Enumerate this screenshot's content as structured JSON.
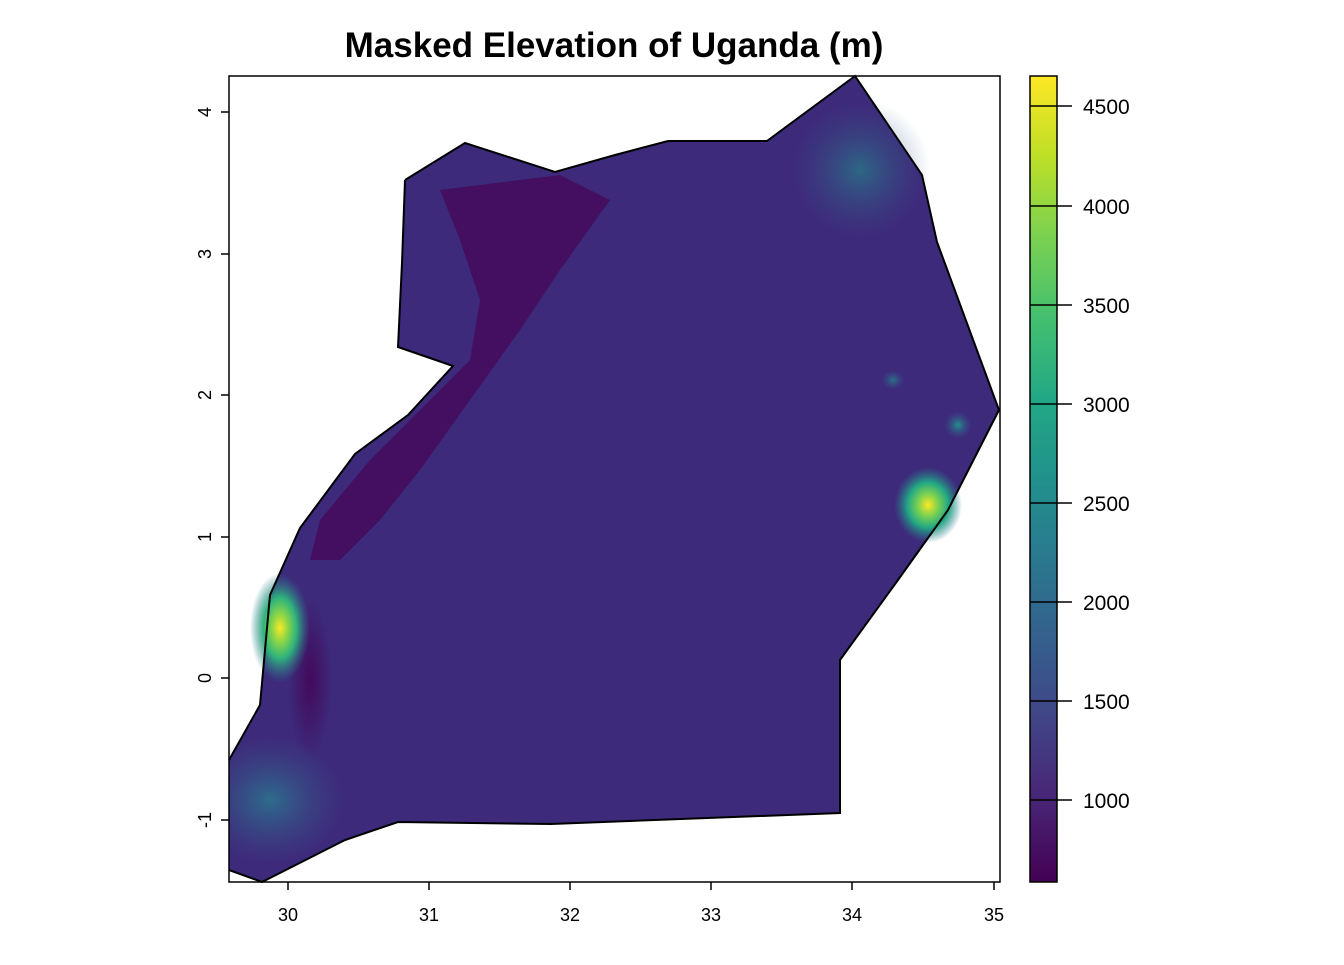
{
  "map": {
    "title": "Masked Elevation of Uganda (m)",
    "x_ticks": [
      "30",
      "31",
      "32",
      "33",
      "34",
      "35"
    ],
    "y_ticks": [
      "4",
      "3",
      "2",
      "1",
      "0",
      "-1"
    ],
    "xlim": [
      29.57,
      35.03
    ],
    "ylim": [
      -1.48,
      4.23
    ],
    "colormap": "viridis",
    "colors": {
      "low": "#440154",
      "mid_low": "#39558c",
      "mid": "#21918c",
      "mid_high": "#5ec962",
      "high": "#fde725"
    }
  },
  "colorbar": {
    "ticks": [
      "4500",
      "4000",
      "3500",
      "3000",
      "2500",
      "2000",
      "1500",
      "1000"
    ],
    "range": [
      570,
      4650
    ]
  }
}
